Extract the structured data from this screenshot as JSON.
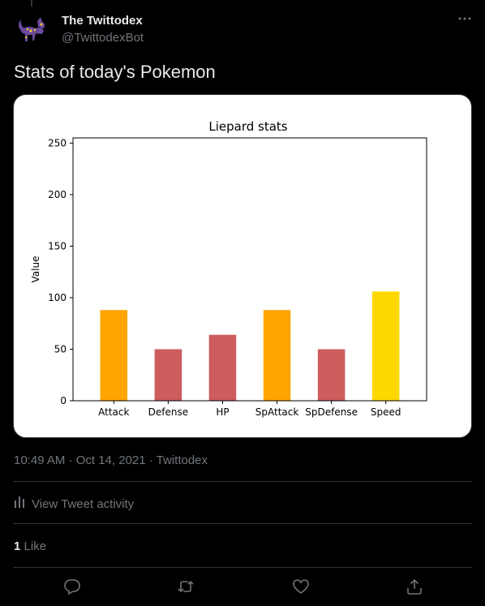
{
  "author": {
    "name": "The Twittodex",
    "handle": "@TwittodexBot"
  },
  "tweet": {
    "text": "Stats of today's Pokemon",
    "timestamp": "10:49 AM · Oct 14, 2021 · Twittodex"
  },
  "activity": {
    "label": "View Tweet activity"
  },
  "likes": {
    "count": "1",
    "label": "Like"
  },
  "icons": {
    "more": "more-icon",
    "activity": "activity-icon",
    "reply": "reply-icon",
    "retweet": "retweet-icon",
    "like": "like-icon",
    "share": "share-icon"
  },
  "chart_data": {
    "type": "bar",
    "title": "Liepard stats",
    "xlabel": "",
    "ylabel": "Value",
    "ylim": [
      0,
      255
    ],
    "yticks": [
      0,
      50,
      100,
      150,
      200,
      250
    ],
    "grid": false,
    "categories": [
      "Attack",
      "Defense",
      "HP",
      "SpAttack",
      "SpDefense",
      "Speed"
    ],
    "values": [
      88,
      50,
      64,
      88,
      50,
      106
    ],
    "colors": [
      "#FFA500",
      "#CD5C5C",
      "#CD5C5C",
      "#FFA500",
      "#CD5C5C",
      "#FFD700"
    ]
  }
}
